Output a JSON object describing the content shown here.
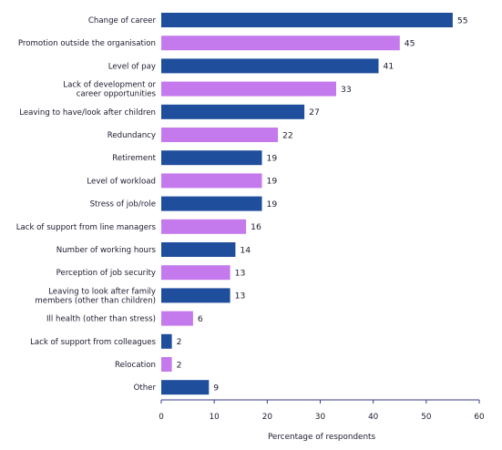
{
  "chart_data": {
    "type": "bar",
    "orientation": "horizontal",
    "categories": [
      "Change of career",
      "Promotion outside the organisation",
      "Level of pay",
      "Lack of development or\ncareer opportunities",
      "Leaving to have/look after children",
      "Redundancy",
      "Retirement",
      "Level of workload",
      "Stress of job/role",
      "Lack of support from line managers",
      "Number of working hours",
      "Perception of job security",
      "Leaving to look after family\nmembers (other than children)",
      "Ill health (other than stress)",
      "Lack of support from colleagues",
      "Relocation",
      "Other"
    ],
    "values": [
      55,
      45,
      41,
      33,
      27,
      22,
      19,
      19,
      19,
      16,
      14,
      13,
      13,
      6,
      2,
      2,
      9
    ],
    "title": "",
    "xlabel": "Percentage of respondents",
    "ylabel": "",
    "xlim": [
      0,
      60
    ],
    "xticks": [
      0,
      10,
      20,
      30,
      40,
      50,
      60
    ],
    "grid": false,
    "legend": "none",
    "colors": {
      "dark": "#1f4e9c",
      "light": "#c479ec",
      "axis": "#3a3a8a",
      "text": "#1a1a2e"
    }
  }
}
